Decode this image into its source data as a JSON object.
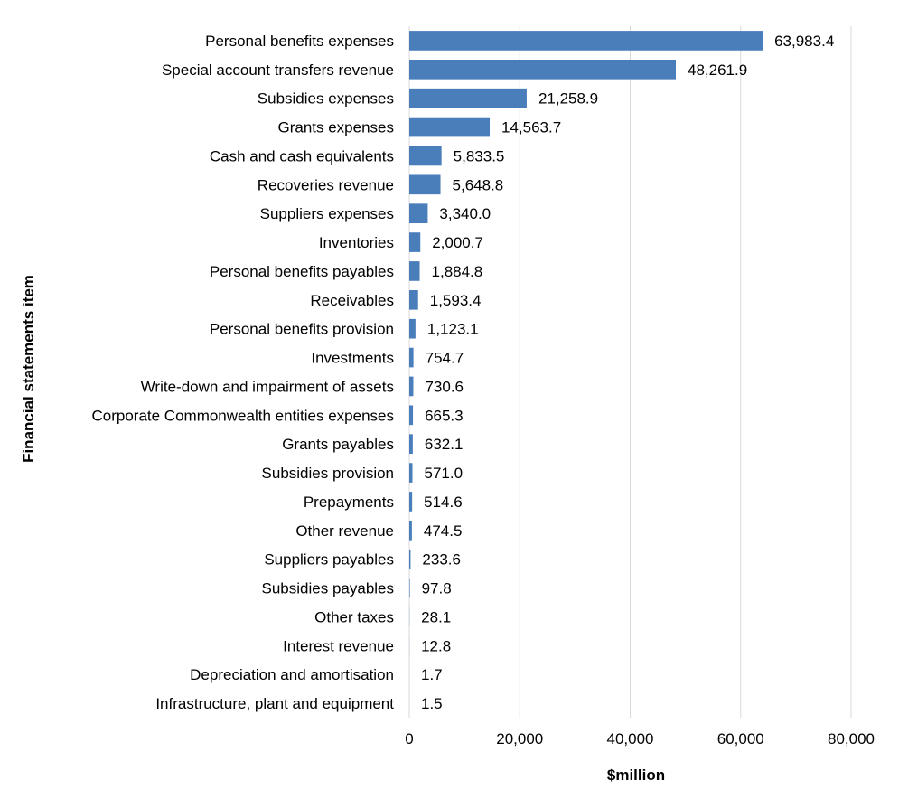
{
  "chart_data": {
    "type": "bar",
    "orientation": "horizontal",
    "categories": [
      "Personal benefits expenses",
      "Special account transfers revenue",
      "Subsidies expenses",
      "Grants expenses",
      "Cash and cash equivalents",
      "Recoveries revenue",
      "Suppliers expenses",
      "Inventories",
      "Personal benefits payables",
      "Receivables",
      "Personal benefits provision",
      "Investments",
      "Write-down and impairment of assets",
      "Corporate Commonwealth entities expenses",
      "Grants payables",
      "Subsidies provision",
      "Prepayments",
      "Other revenue",
      "Suppliers payables",
      "Subsidies payables",
      "Other taxes",
      "Interest revenue",
      "Depreciation and amortisation",
      "Infrastructure, plant and equipment"
    ],
    "values": [
      63983.4,
      48261.9,
      21258.9,
      14563.7,
      5833.5,
      5648.8,
      3340.0,
      2000.7,
      1884.8,
      1593.4,
      1123.1,
      754.7,
      730.6,
      665.3,
      632.1,
      571.0,
      514.6,
      474.5,
      233.6,
      97.8,
      28.1,
      12.8,
      1.7,
      1.5
    ],
    "value_labels": [
      "63,983.4",
      "48,261.9",
      "21,258.9",
      "14,563.7",
      "5,833.5",
      "5,648.8",
      "3,340.0",
      "2,000.7",
      "1,884.8",
      "1,593.4",
      "1,123.1",
      "754.7",
      "730.6",
      "665.3",
      "632.1",
      "571.0",
      "514.6",
      "474.5",
      "233.6",
      "97.8",
      "28.1",
      "12.8",
      "1.7",
      "1.5"
    ],
    "xlabel": "$million",
    "ylabel": "Financial statements item",
    "xlim": [
      0,
      80000
    ],
    "xticks": [
      0,
      20000,
      40000,
      60000,
      80000
    ],
    "xtick_labels": [
      "0",
      "20,000",
      "40,000",
      "60,000",
      "80,000"
    ],
    "grid": "vertical",
    "bar_color": "#4a7ebb",
    "grid_color": "#d9d9d9"
  }
}
